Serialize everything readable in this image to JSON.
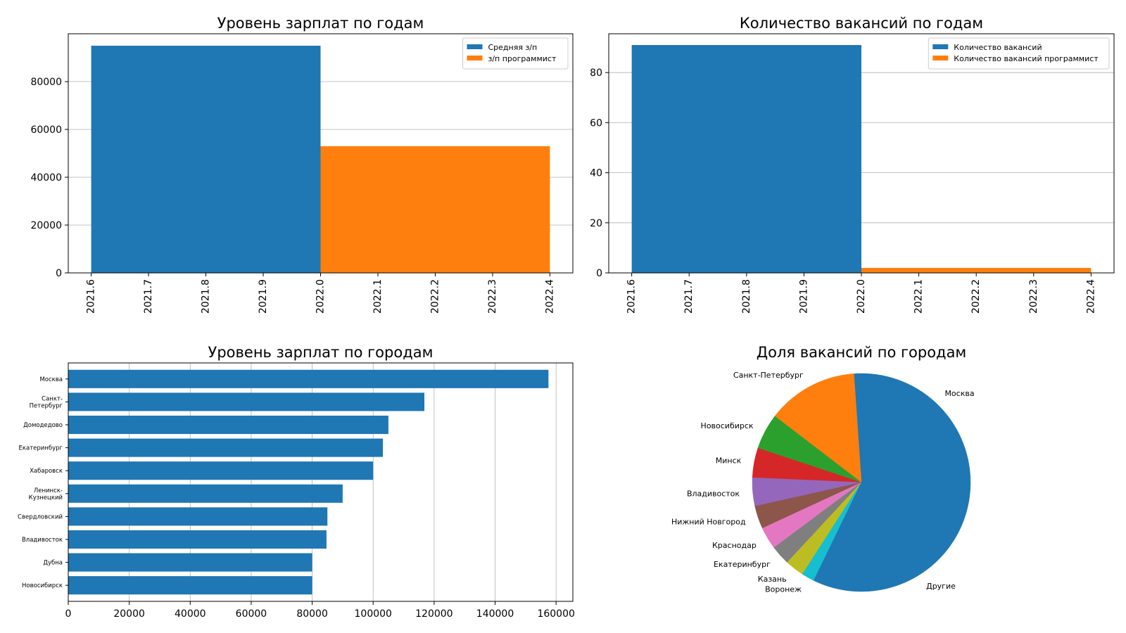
{
  "chart_data": [
    {
      "type": "bar",
      "title": "Уровень зарплат по годам",
      "x": [
        2021.6,
        2021.7,
        2021.8,
        2021.9,
        2022.0,
        2022.1,
        2022.2,
        2022.3,
        2022.4
      ],
      "x_tick_labels": [
        "2021.6",
        "2021.7",
        "2021.8",
        "2021.9",
        "2022.0",
        "2022.1",
        "2022.2",
        "2022.3",
        "2022.4"
      ],
      "xlim": [
        2021.56,
        2022.44
      ],
      "ylim": [
        0,
        100000
      ],
      "y_ticks": [
        0,
        20000,
        40000,
        60000,
        80000
      ],
      "y_tick_labels": [
        "0",
        "20000",
        "40000",
        "60000",
        "80000"
      ],
      "grid": "y",
      "legend_position": "top-right",
      "series": [
        {
          "name": "Средняя з/п",
          "color": "#1f77b4",
          "bars": [
            {
              "x_start": 2021.6,
              "x_end": 2022.0,
              "value": 95000
            }
          ]
        },
        {
          "name": "з/п программист",
          "color": "#ff7f0e",
          "bars": [
            {
              "x_start": 2022.0,
              "x_end": 2022.4,
              "value": 53000
            }
          ]
        }
      ]
    },
    {
      "type": "bar",
      "title": "Количество вакансий по годам",
      "x": [
        2021.6,
        2021.7,
        2021.8,
        2021.9,
        2022.0,
        2022.1,
        2022.2,
        2022.3,
        2022.4
      ],
      "x_tick_labels": [
        "2021.6",
        "2021.7",
        "2021.8",
        "2021.9",
        "2022.0",
        "2022.1",
        "2022.2",
        "2022.3",
        "2022.4"
      ],
      "xlim": [
        2021.56,
        2022.44
      ],
      "ylim": [
        0,
        95.5
      ],
      "y_ticks": [
        0,
        20,
        40,
        60,
        80
      ],
      "y_tick_labels": [
        "0",
        "20",
        "40",
        "60",
        "80"
      ],
      "grid": "y",
      "legend_position": "top-right",
      "series": [
        {
          "name": "Количество вакансий",
          "color": "#1f77b4",
          "bars": [
            {
              "x_start": 2021.6,
              "x_end": 2022.0,
              "value": 91
            }
          ]
        },
        {
          "name": "Количество вакансий программист",
          "color": "#ff7f0e",
          "bars": [
            {
              "x_start": 2022.0,
              "x_end": 2022.4,
              "value": 2
            }
          ]
        }
      ]
    },
    {
      "type": "bar",
      "orientation": "horizontal",
      "title": "Уровень зарплат по городам",
      "categories": [
        [
          "Москва"
        ],
        [
          "Санкт-",
          "Петербург"
        ],
        [
          "Домодедово"
        ],
        [
          "Екатеринбург"
        ],
        [
          "Хабаровск"
        ],
        [
          "Ленинск-",
          "Кузнецкий"
        ],
        [
          "Свердловский"
        ],
        [
          "Владивосток"
        ],
        [
          "Дубна"
        ],
        [
          "Новосибирск"
        ]
      ],
      "values": [
        157500,
        116800,
        105000,
        103200,
        100000,
        90000,
        85000,
        84700,
        80000,
        80000
      ],
      "xlim": [
        0,
        165500
      ],
      "x_ticks": [
        0,
        20000,
        40000,
        60000,
        80000,
        100000,
        120000,
        140000,
        160000
      ],
      "x_tick_labels": [
        "0",
        "20000",
        "40000",
        "60000",
        "80000",
        "100000",
        "120000",
        "140000",
        "160000"
      ],
      "grid": "x",
      "color": "#1f77b4"
    },
    {
      "type": "pie",
      "title": "Доля вакансий по городам",
      "labels": [
        "Москва",
        "Санкт-Петербург",
        "Новосибирск",
        "Минск",
        "Владивосток",
        "Нижний Новгород",
        "Краснодар",
        "Екатеринбург",
        "Казань",
        "Воронеж",
        "Другие"
      ],
      "values": [
        26.1,
        13.5,
        5.3,
        4.4,
        4.2,
        3.4,
        3.3,
        2.9,
        2.8,
        1.9,
        32.2
      ],
      "colors": [
        "#1f77b4",
        "#ff7f0e",
        "#2ca02c",
        "#d62728",
        "#9467bd",
        "#8c564b",
        "#e377c2",
        "#7f7f7f",
        "#bcbd22",
        "#17becf",
        "#1f77b4"
      ],
      "start_angle_deg": 0,
      "direction": "counterclockwise"
    }
  ]
}
